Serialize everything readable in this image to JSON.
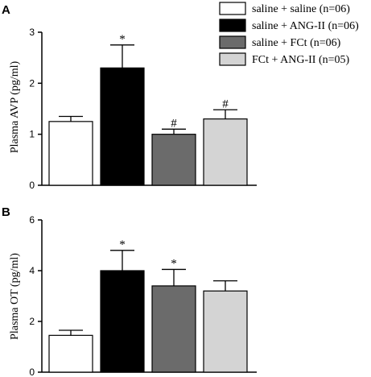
{
  "chart_data": [
    {
      "type": "bar",
      "panel_label": "A",
      "ylabel": "Plasma AVP (pg/ml)",
      "ylim": [
        0,
        3
      ],
      "yticks": [
        "0",
        "1",
        "2",
        "3"
      ],
      "categories": [
        "saline + saline (n=06)",
        "saline + ANG-II (n=06)",
        "saline + FCt (n=06)",
        "FCt + ANG-II (n=05)"
      ],
      "values": [
        1.25,
        2.3,
        1.0,
        1.3
      ],
      "errors": [
        0.1,
        0.45,
        0.1,
        0.18
      ],
      "annotations": [
        "",
        "*",
        "#",
        "#"
      ],
      "legend": "top-right",
      "grid": false
    },
    {
      "type": "bar",
      "panel_label": "B",
      "ylabel": "Plasma OT (pg/ml)",
      "ylim": [
        0,
        6
      ],
      "yticks": [
        "0",
        "2",
        "4",
        "6"
      ],
      "categories": [
        "saline + saline (n=06)",
        "saline + ANG-II (n=06)",
        "saline + FCt (n=06)",
        "FCt + ANG-II (n=05)"
      ],
      "values": [
        1.45,
        4.0,
        3.4,
        3.2
      ],
      "errors": [
        0.2,
        0.8,
        0.65,
        0.4
      ],
      "annotations": [
        "",
        "*",
        "*",
        ""
      ],
      "grid": false
    }
  ],
  "colors": {
    "saline_saline": "#ffffff",
    "saline_ang2": "#000000",
    "saline_fct": "#6b6b6b",
    "fct_ang2": "#d4d4d4"
  }
}
